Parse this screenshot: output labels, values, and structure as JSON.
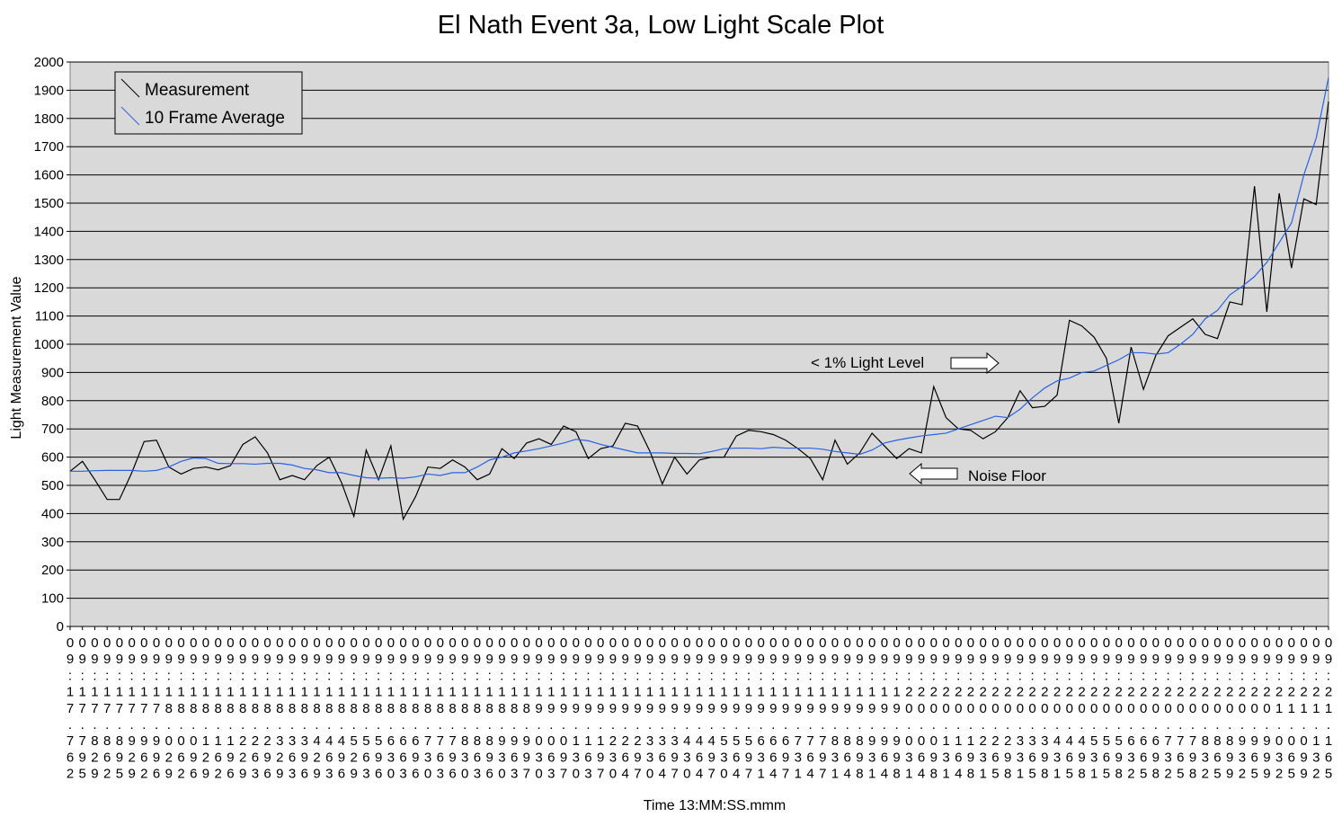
{
  "chart_data": {
    "type": "line",
    "title": "El Nath Event 3a, Low Light Scale Plot",
    "y_label": "Light Measurement Value",
    "x_label": "Time 13:MM:SS.mmm",
    "annotations": [
      "< 1% Light Level",
      "Noise Floor"
    ],
    "legend": "top-left",
    "grid": true,
    "ylim": [
      0,
      2000
    ],
    "yticks": [
      0,
      100,
      200,
      300,
      400,
      500,
      600,
      700,
      800,
      900,
      1000,
      1100,
      1200,
      1300,
      1400,
      1500,
      1600,
      1700,
      1800,
      1900,
      2000
    ],
    "categories": [
      "09:17.762",
      "09:17.795",
      "09:17.829",
      "09:17.862",
      "09:17.895",
      "09:17.929",
      "09:17.962",
      "09:17.996",
      "09:18.029",
      "09:18.062",
      "09:18.096",
      "09:18.129",
      "09:18.162",
      "09:18.196",
      "09:18.229",
      "09:18.263",
      "09:18.296",
      "09:18.329",
      "09:18.363",
      "09:18.396",
      "09:18.429",
      "09:18.463",
      "09:18.496",
      "09:18.529",
      "09:18.563",
      "09:18.596",
      "09:18.630",
      "09:18.663",
      "09:18.696",
      "09:18.730",
      "09:18.763",
      "09:18.796",
      "09:18.830",
      "09:18.863",
      "09:18.896",
      "09:18.930",
      "09:18.963",
      "09:18.997",
      "09:19.030",
      "09:19.063",
      "09:19.097",
      "09:19.130",
      "09:19.163",
      "09:19.197",
      "09:19.230",
      "09:19.264",
      "09:19.297",
      "09:19.330",
      "09:19.364",
      "09:19.397",
      "09:19.430",
      "09:19.464",
      "09:19.497",
      "09:19.530",
      "09:19.564",
      "09:19.597",
      "09:19.631",
      "09:19.664",
      "09:19.697",
      "09:19.731",
      "09:19.764",
      "09:19.797",
      "09:19.831",
      "09:19.864",
      "09:19.898",
      "09:19.931",
      "09:19.964",
      "09:19.998",
      "09:20.031",
      "09:20.064",
      "09:20.098",
      "09:20.131",
      "09:20.164",
      "09:20.198",
      "09:20.231",
      "09:20.265",
      "09:20.298",
      "09:20.331",
      "09:20.365",
      "09:20.398",
      "09:20.431",
      "09:20.465",
      "09:20.498",
      "09:20.531",
      "09:20.565",
      "09:20.598",
      "09:20.632",
      "09:20.665",
      "09:20.698",
      "09:20.732",
      "09:20.765",
      "09:20.798",
      "09:20.832",
      "09:20.865",
      "09:20.899",
      "09:20.932",
      "09:20.965",
      "09:20.999",
      "09:21.032",
      "09:21.065",
      "09:21.099",
      "09:21.132",
      "09:21.165"
    ],
    "series": [
      {
        "name": "Measurement",
        "color": "#000000",
        "values": [
          550,
          585,
          520,
          450,
          450,
          545,
          655,
          660,
          565,
          540,
          560,
          565,
          555,
          570,
          645,
          672,
          615,
          520,
          535,
          520,
          570,
          600,
          510,
          390,
          625,
          520,
          640,
          380,
          460,
          565,
          560,
          590,
          565,
          520,
          540,
          630,
          595,
          650,
          665,
          645,
          710,
          690,
          595,
          630,
          640,
          720,
          710,
          620,
          505,
          600,
          540,
          590,
          600,
          600,
          675,
          695,
          690,
          680,
          660,
          630,
          595,
          520,
          660,
          575,
          615,
          685,
          640,
          595,
          630,
          615,
          850,
          740,
          700,
          695,
          665,
          690,
          740,
          835,
          775,
          780,
          820,
          1085,
          1065,
          1025,
          950,
          720,
          990,
          840,
          960,
          1030,
          1060,
          1090,
          1035,
          1020,
          1150,
          1140,
          1560,
          1115,
          1535,
          1270,
          1515,
          1495,
          1860
        ]
      },
      {
        "name": "10 Frame Average",
        "color": "#2a62e0",
        "values": [
          550,
          550,
          552,
          553,
          553,
          553,
          550,
          553,
          565,
          585,
          597,
          595,
          578,
          577,
          577,
          575,
          578,
          578,
          572,
          560,
          555,
          545,
          545,
          535,
          527,
          525,
          527,
          525,
          530,
          540,
          535,
          545,
          545,
          565,
          590,
          600,
          615,
          622,
          630,
          640,
          650,
          663,
          658,
          645,
          635,
          625,
          615,
          615,
          615,
          613,
          613,
          612,
          620,
          630,
          632,
          632,
          630,
          635,
          632,
          632,
          632,
          628,
          620,
          615,
          610,
          625,
          650,
          660,
          668,
          675,
          680,
          685,
          700,
          715,
          730,
          745,
          740,
          770,
          810,
          845,
          870,
          880,
          900,
          905,
          925,
          945,
          970,
          970,
          965,
          970,
          1000,
          1035,
          1090,
          1120,
          1175,
          1205,
          1240,
          1290,
          1360,
          1430,
          1600,
          1730,
          1945
        ]
      }
    ]
  }
}
